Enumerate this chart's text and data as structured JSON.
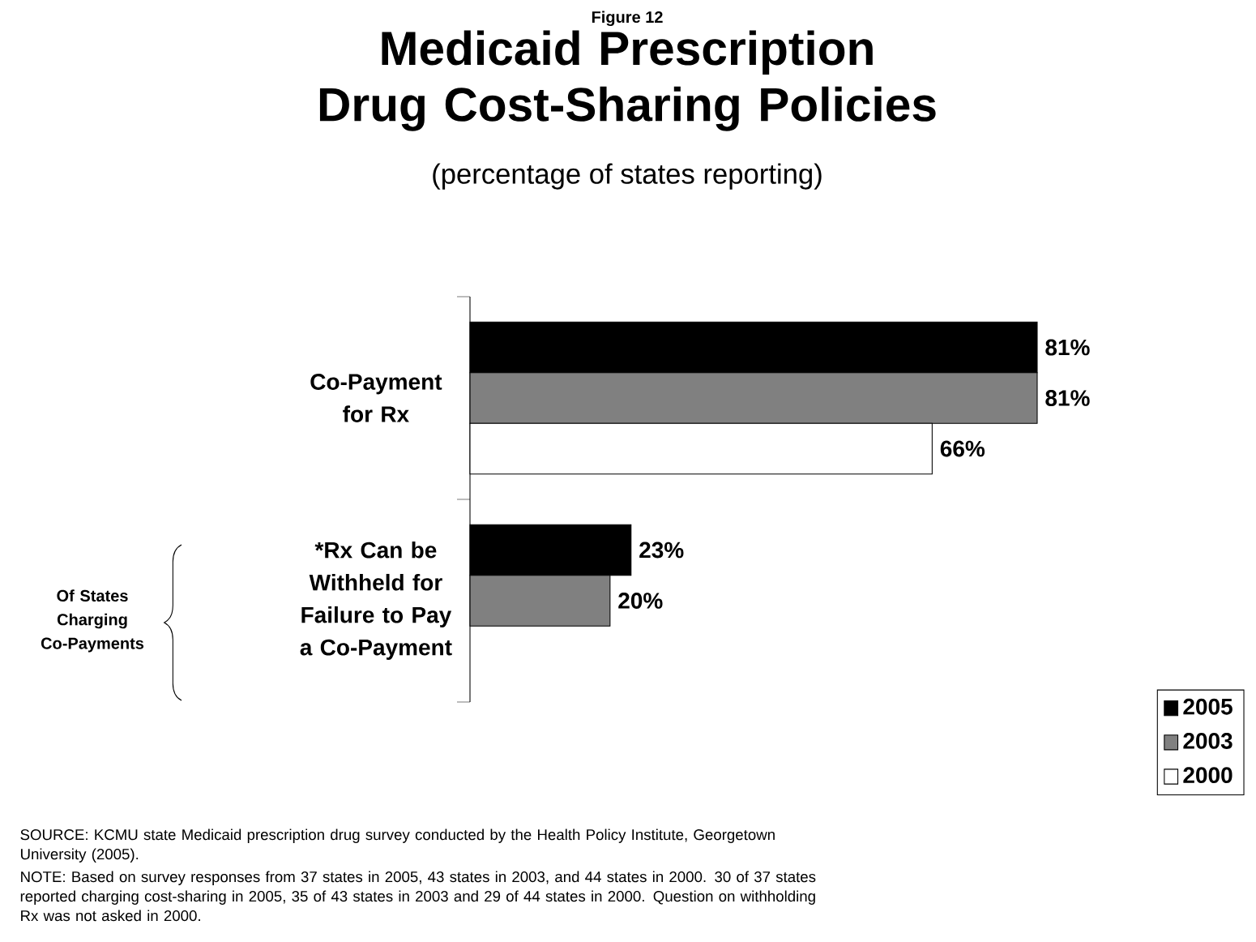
{
  "chart_data": {
    "type": "bar",
    "orientation": "horizontal",
    "title": "Medicaid Prescription Drug Cost-Sharing Policies",
    "subtitle": "(percentage of states reporting)",
    "categories": [
      "Co-Payment for Rx",
      "*Rx Can be Withheld for Failure to Pay a Co-Payment"
    ],
    "series": [
      {
        "name": "2005",
        "color": "#000000",
        "values": [
          81,
          23
        ],
        "value_labels": [
          "81%",
          "23%"
        ]
      },
      {
        "name": "2003",
        "color": "#808080",
        "values": [
          81,
          20
        ],
        "value_labels": [
          "81%",
          "20%"
        ]
      },
      {
        "name": "2000",
        "color": "#ffffff",
        "values": [
          66,
          null
        ],
        "value_labels": [
          "66%",
          null
        ]
      }
    ],
    "legend": "bottom right",
    "annotations": [
      "Figure 12",
      "Of States Charging Co-Payments",
      "SOURCE: KCMU state Medicaid prescription drug survey conducted by the Health Policy Institute, Georgetown University (2005).",
      "NOTE: Based on survey responses from 37 states in 2005, 43 states in 2003, and 44 states in 2000. 30 of 37 states reported charging cost-sharing in 2005, 35 of 43 states in 2003 and 29 of 44 states in 2000. Question on withholding Rx was not asked in 2000."
    ]
  }
}
